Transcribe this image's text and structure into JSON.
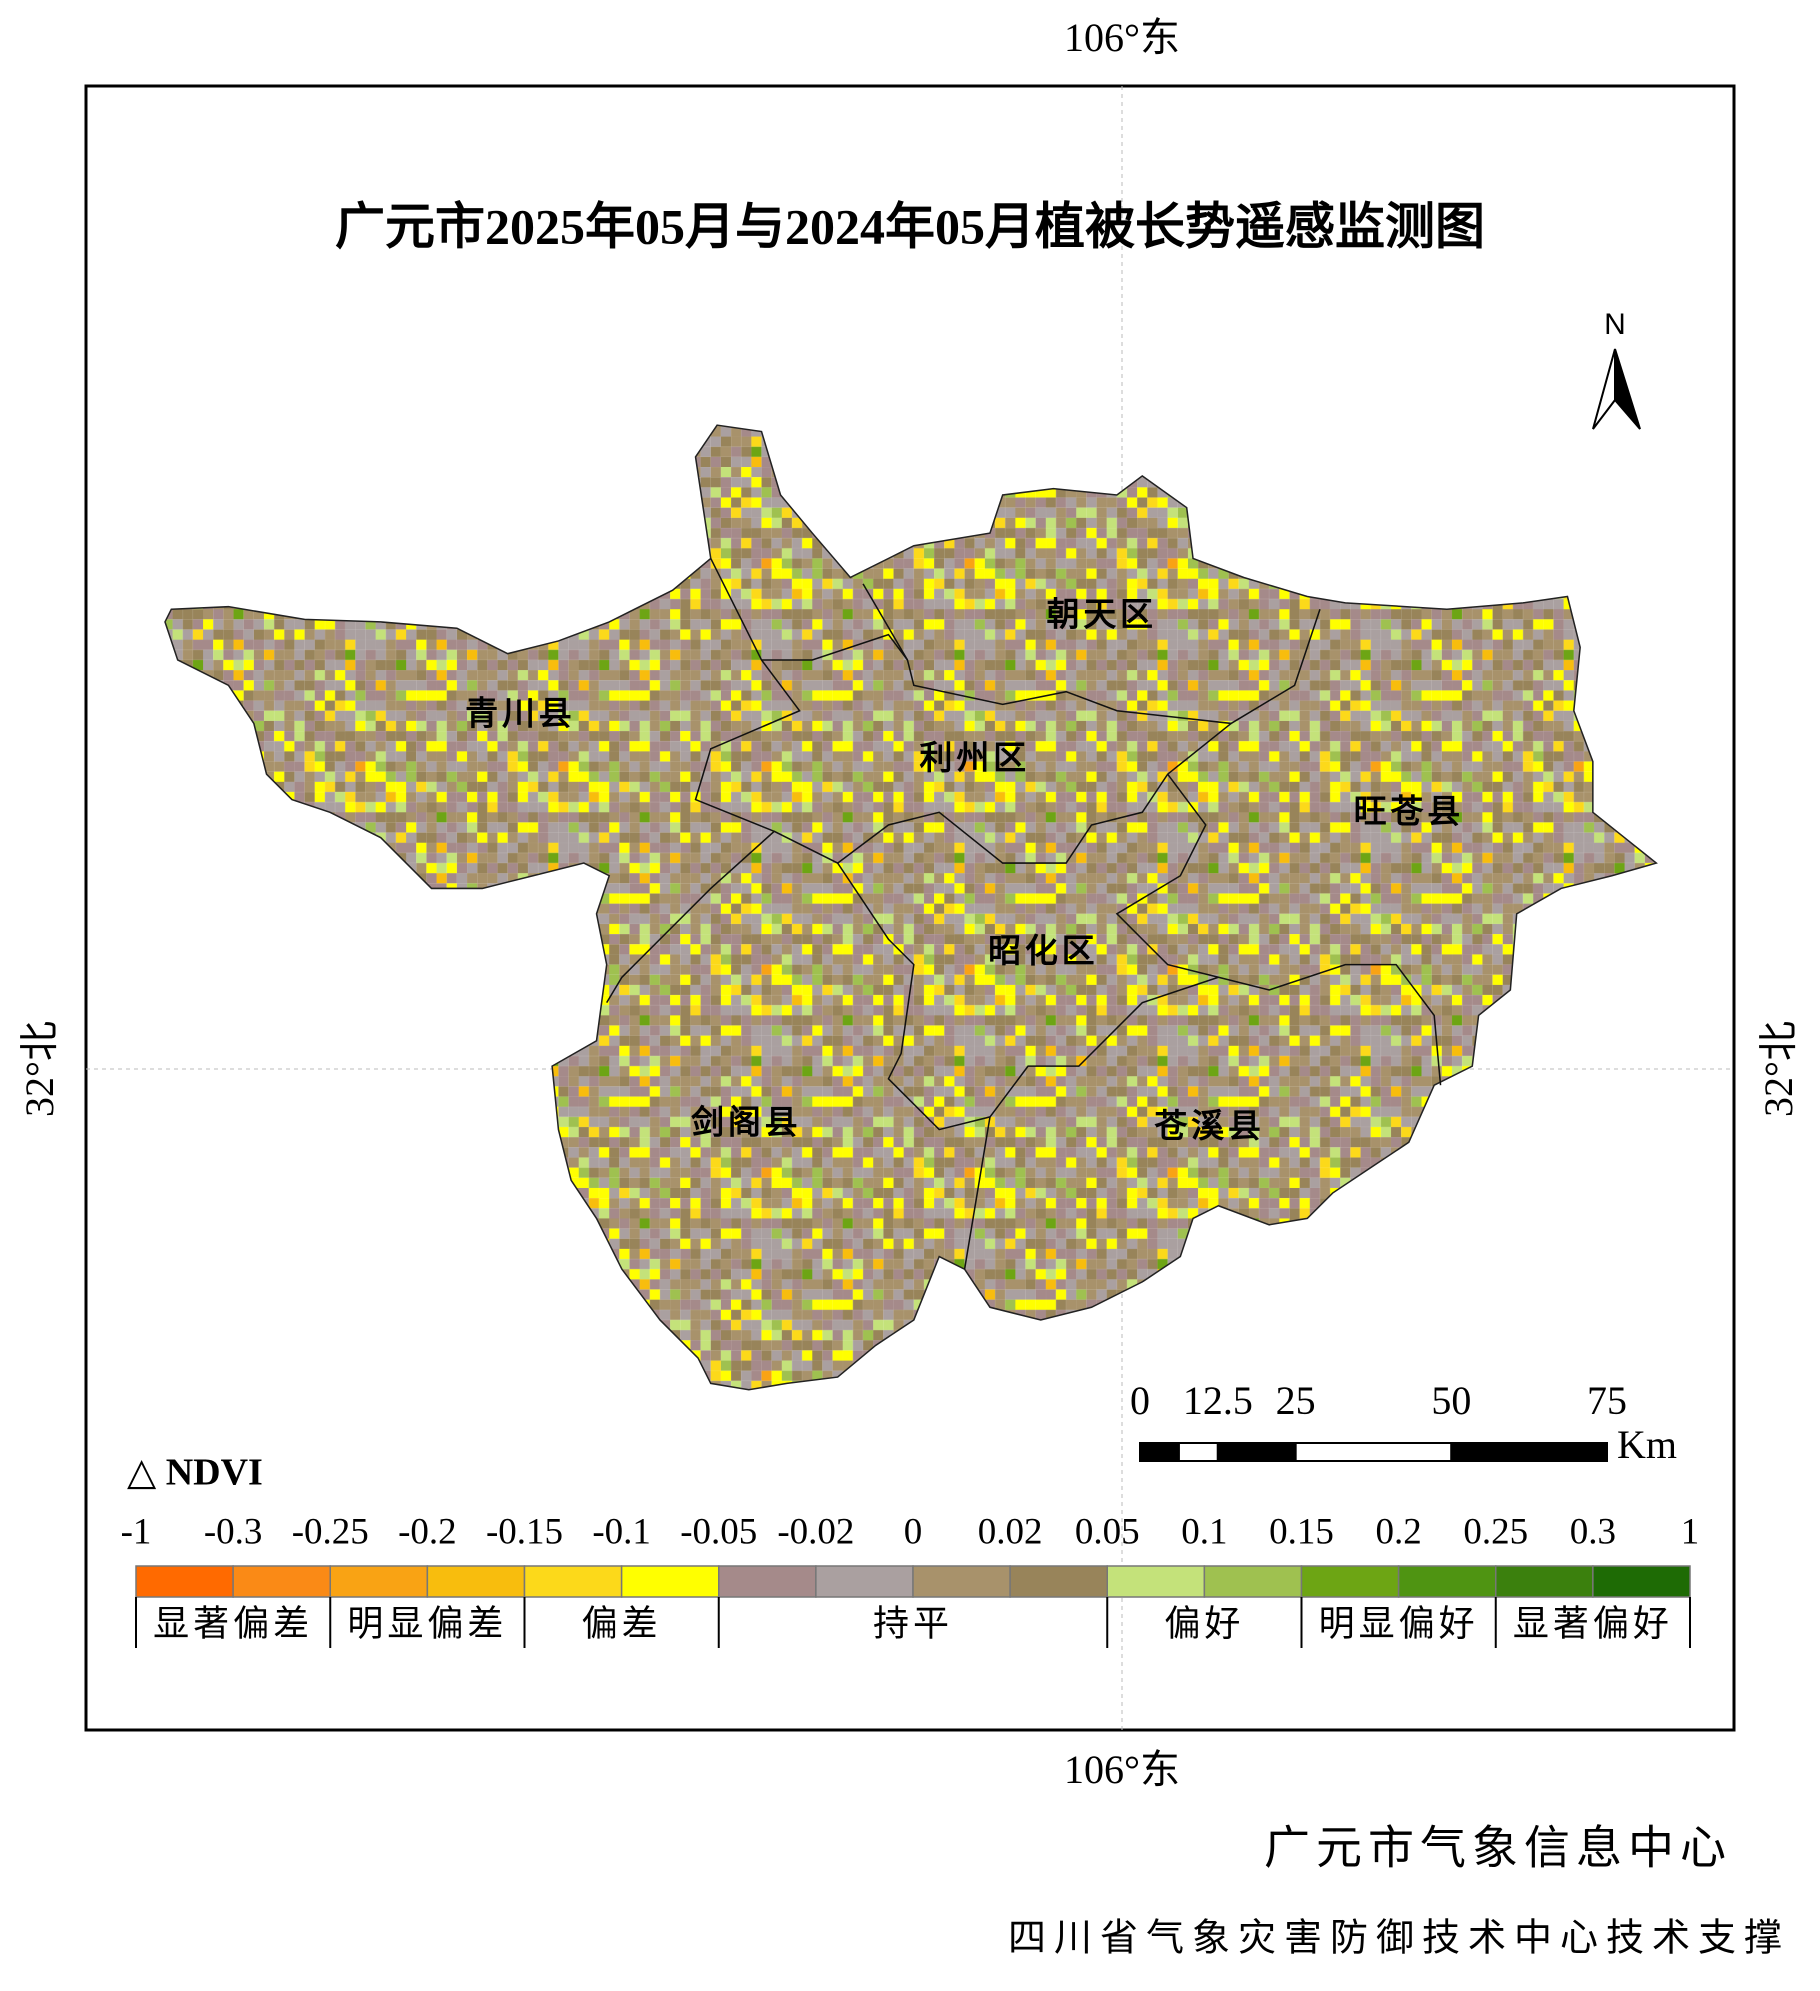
{
  "title": "广元市2025年05月与2024年05月植被长势遥感监测图",
  "graticule": {
    "lon": "106°东",
    "lat": "32°北"
  },
  "north": "N",
  "districts": [
    "朝天区",
    "青川县",
    "利州区",
    "旺苍县",
    "昭化区",
    "剑阁县",
    "苍溪县"
  ],
  "legend": {
    "title": "△ NDVI",
    "breaks": [
      -1,
      -0.3,
      -0.25,
      -0.2,
      -0.15,
      -0.1,
      -0.05,
      -0.02,
      0,
      0.02,
      0.05,
      0.1,
      0.15,
      0.2,
      0.25,
      0.3,
      1
    ],
    "classes": [
      {
        "label": "显著偏差",
        "colors": [
          "#ff6a00",
          "#fa8a16"
        ]
      },
      {
        "label": "明显偏差",
        "colors": [
          "#f9a314",
          "#f8bd0d"
        ]
      },
      {
        "label": "偏差",
        "colors": [
          "#fcd91a",
          "#ffff00"
        ]
      },
      {
        "label": "持平",
        "colors": [
          "#a58a8a",
          "#aaa0a0",
          "#a8926b",
          "#98845a"
        ]
      },
      {
        "label": "偏好",
        "colors": [
          "#c4e27a",
          "#9fc150"
        ]
      },
      {
        "label": "明显偏好",
        "colors": [
          "#6da514",
          "#4f9412"
        ]
      },
      {
        "label": "显著偏好",
        "colors": [
          "#3b800d",
          "#1e6b05"
        ]
      }
    ]
  },
  "scale_bar": {
    "ticks": [
      0,
      12.5,
      25,
      50,
      75
    ],
    "unit": "Km"
  },
  "credits": [
    "广元市气象信息中心",
    "四川省气象灾害防御技术中心技术支撑"
  ]
}
